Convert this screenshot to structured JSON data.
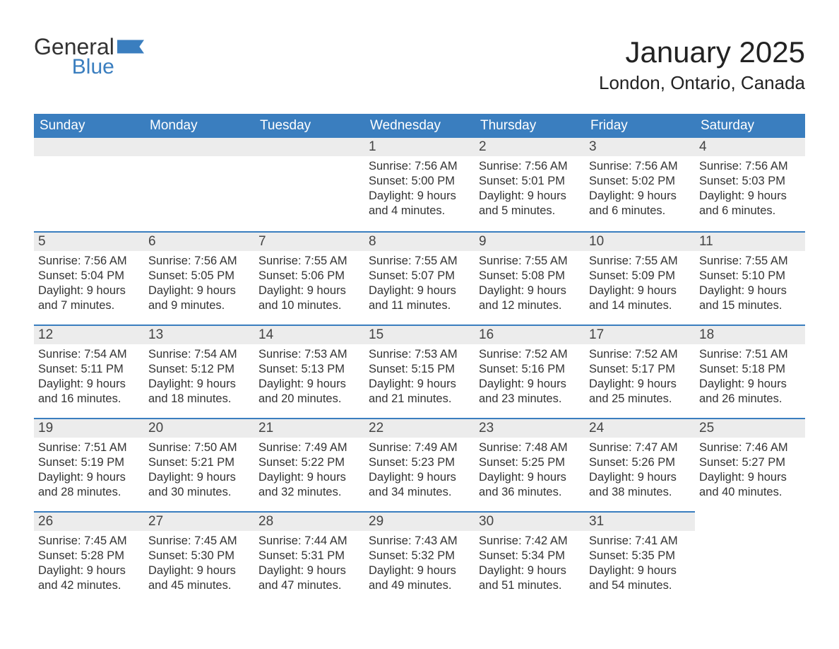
{
  "logo": {
    "text_top": "General",
    "text_bottom": "Blue",
    "flag_color": "#3a7ebf"
  },
  "header": {
    "month_title": "January 2025",
    "location": "London, Ontario, Canada"
  },
  "colors": {
    "header_bg": "#3a7ebf",
    "header_text": "#ffffff",
    "daynum_bg": "#ececec",
    "row_border": "#3a7ebf",
    "body_bg": "#ffffff",
    "text": "#333333"
  },
  "typography": {
    "month_title_fontsize": 42,
    "location_fontsize": 26,
    "weekday_fontsize": 19,
    "daynum_fontsize": 19,
    "body_fontsize": 16.5,
    "font_family": "Arial"
  },
  "layout": {
    "columns": 7,
    "rows": 5,
    "start_weekday_index": 3
  },
  "weekdays": [
    "Sunday",
    "Monday",
    "Tuesday",
    "Wednesday",
    "Thursday",
    "Friday",
    "Saturday"
  ],
  "days": [
    {
      "n": 1,
      "sunrise": "7:56 AM",
      "sunset": "5:00 PM",
      "daylight": "9 hours and 4 minutes."
    },
    {
      "n": 2,
      "sunrise": "7:56 AM",
      "sunset": "5:01 PM",
      "daylight": "9 hours and 5 minutes."
    },
    {
      "n": 3,
      "sunrise": "7:56 AM",
      "sunset": "5:02 PM",
      "daylight": "9 hours and 6 minutes."
    },
    {
      "n": 4,
      "sunrise": "7:56 AM",
      "sunset": "5:03 PM",
      "daylight": "9 hours and 6 minutes."
    },
    {
      "n": 5,
      "sunrise": "7:56 AM",
      "sunset": "5:04 PM",
      "daylight": "9 hours and 7 minutes."
    },
    {
      "n": 6,
      "sunrise": "7:56 AM",
      "sunset": "5:05 PM",
      "daylight": "9 hours and 9 minutes."
    },
    {
      "n": 7,
      "sunrise": "7:55 AM",
      "sunset": "5:06 PM",
      "daylight": "9 hours and 10 minutes."
    },
    {
      "n": 8,
      "sunrise": "7:55 AM",
      "sunset": "5:07 PM",
      "daylight": "9 hours and 11 minutes."
    },
    {
      "n": 9,
      "sunrise": "7:55 AM",
      "sunset": "5:08 PM",
      "daylight": "9 hours and 12 minutes."
    },
    {
      "n": 10,
      "sunrise": "7:55 AM",
      "sunset": "5:09 PM",
      "daylight": "9 hours and 14 minutes."
    },
    {
      "n": 11,
      "sunrise": "7:55 AM",
      "sunset": "5:10 PM",
      "daylight": "9 hours and 15 minutes."
    },
    {
      "n": 12,
      "sunrise": "7:54 AM",
      "sunset": "5:11 PM",
      "daylight": "9 hours and 16 minutes."
    },
    {
      "n": 13,
      "sunrise": "7:54 AM",
      "sunset": "5:12 PM",
      "daylight": "9 hours and 18 minutes."
    },
    {
      "n": 14,
      "sunrise": "7:53 AM",
      "sunset": "5:13 PM",
      "daylight": "9 hours and 20 minutes."
    },
    {
      "n": 15,
      "sunrise": "7:53 AM",
      "sunset": "5:15 PM",
      "daylight": "9 hours and 21 minutes."
    },
    {
      "n": 16,
      "sunrise": "7:52 AM",
      "sunset": "5:16 PM",
      "daylight": "9 hours and 23 minutes."
    },
    {
      "n": 17,
      "sunrise": "7:52 AM",
      "sunset": "5:17 PM",
      "daylight": "9 hours and 25 minutes."
    },
    {
      "n": 18,
      "sunrise": "7:51 AM",
      "sunset": "5:18 PM",
      "daylight": "9 hours and 26 minutes."
    },
    {
      "n": 19,
      "sunrise": "7:51 AM",
      "sunset": "5:19 PM",
      "daylight": "9 hours and 28 minutes."
    },
    {
      "n": 20,
      "sunrise": "7:50 AM",
      "sunset": "5:21 PM",
      "daylight": "9 hours and 30 minutes."
    },
    {
      "n": 21,
      "sunrise": "7:49 AM",
      "sunset": "5:22 PM",
      "daylight": "9 hours and 32 minutes."
    },
    {
      "n": 22,
      "sunrise": "7:49 AM",
      "sunset": "5:23 PM",
      "daylight": "9 hours and 34 minutes."
    },
    {
      "n": 23,
      "sunrise": "7:48 AM",
      "sunset": "5:25 PM",
      "daylight": "9 hours and 36 minutes."
    },
    {
      "n": 24,
      "sunrise": "7:47 AM",
      "sunset": "5:26 PM",
      "daylight": "9 hours and 38 minutes."
    },
    {
      "n": 25,
      "sunrise": "7:46 AM",
      "sunset": "5:27 PM",
      "daylight": "9 hours and 40 minutes."
    },
    {
      "n": 26,
      "sunrise": "7:45 AM",
      "sunset": "5:28 PM",
      "daylight": "9 hours and 42 minutes."
    },
    {
      "n": 27,
      "sunrise": "7:45 AM",
      "sunset": "5:30 PM",
      "daylight": "9 hours and 45 minutes."
    },
    {
      "n": 28,
      "sunrise": "7:44 AM",
      "sunset": "5:31 PM",
      "daylight": "9 hours and 47 minutes."
    },
    {
      "n": 29,
      "sunrise": "7:43 AM",
      "sunset": "5:32 PM",
      "daylight": "9 hours and 49 minutes."
    },
    {
      "n": 30,
      "sunrise": "7:42 AM",
      "sunset": "5:34 PM",
      "daylight": "9 hours and 51 minutes."
    },
    {
      "n": 31,
      "sunrise": "7:41 AM",
      "sunset": "5:35 PM",
      "daylight": "9 hours and 54 minutes."
    }
  ],
  "labels": {
    "sunrise_prefix": "Sunrise: ",
    "sunset_prefix": "Sunset: ",
    "daylight_prefix": "Daylight: "
  }
}
